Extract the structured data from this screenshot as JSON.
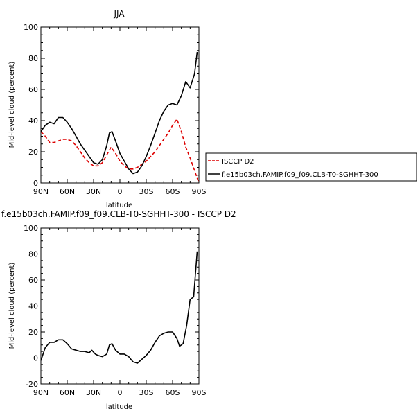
{
  "chart_data": [
    {
      "type": "line",
      "title": "JJA",
      "xlabel": "latitude",
      "ylabel": "Mid-level cloud (percent)",
      "xticks": [
        "90N",
        "60N",
        "30N",
        "0",
        "30S",
        "60S",
        "90S"
      ],
      "yticks": [
        "0",
        "20",
        "40",
        "60",
        "80",
        "100"
      ],
      "xlim": [
        90,
        -90
      ],
      "ylim": [
        0,
        100
      ],
      "series": [
        {
          "name": "ISCCP D2",
          "color": "#dd0000",
          "dash": true,
          "x": [
            90,
            85,
            80,
            75,
            70,
            65,
            60,
            55,
            50,
            45,
            40,
            35,
            30,
            25,
            20,
            15,
            10,
            5,
            0,
            -5,
            -10,
            -15,
            -20,
            -25,
            -30,
            -35,
            -40,
            -45,
            -50,
            -55,
            -60,
            -65,
            -70,
            -75,
            -80,
            -85,
            -90
          ],
          "y": [
            33,
            30,
            26,
            26,
            27,
            28,
            28,
            27,
            24,
            20,
            16,
            13,
            11,
            11,
            13,
            18,
            23,
            19,
            14,
            11,
            9,
            9,
            10,
            12,
            14,
            17,
            20,
            24,
            28,
            32,
            37,
            41,
            33,
            23,
            16,
            8,
            0
          ]
        },
        {
          "name": "f.e15b03ch.FAMIP.f09_f09.CLB-T0-SGHHT-300",
          "color": "#000000",
          "dash": false,
          "x": [
            90,
            85,
            80,
            75,
            70,
            65,
            60,
            55,
            50,
            45,
            40,
            35,
            30,
            25,
            20,
            15,
            12,
            9,
            5,
            0,
            -5,
            -10,
            -15,
            -20,
            -25,
            -30,
            -35,
            -40,
            -45,
            -50,
            -55,
            -60,
            -65,
            -70,
            -75,
            -80,
            -85,
            -88
          ],
          "y": [
            33,
            37,
            39,
            38,
            42,
            42,
            39,
            35,
            30,
            25,
            21,
            17,
            13,
            12,
            15,
            24,
            32,
            33,
            27,
            19,
            14,
            9,
            6,
            7,
            11,
            17,
            24,
            32,
            40,
            46,
            50,
            51,
            50,
            56,
            65,
            61,
            70,
            84
          ]
        }
      ]
    },
    {
      "type": "line",
      "title": "f.e15b03ch.FAMIP.f09_f09.CLB-T0-SGHHT-300 - ISCCP D2",
      "xlabel": "latitude",
      "ylabel": "Mid-level cloud (percent)",
      "xticks": [
        "90N",
        "60N",
        "30N",
        "0",
        "30S",
        "60S",
        "90S"
      ],
      "yticks": [
        "-20",
        "0",
        "20",
        "40",
        "60",
        "80",
        "100"
      ],
      "xlim": [
        90,
        -90
      ],
      "ylim": [
        -20,
        100
      ],
      "series": [
        {
          "color": "#000000",
          "dash": false,
          "x": [
            90,
            85,
            80,
            75,
            70,
            65,
            60,
            55,
            50,
            45,
            40,
            35,
            32,
            28,
            25,
            20,
            15,
            12,
            9,
            5,
            0,
            -5,
            -10,
            -15,
            -20,
            -25,
            -30,
            -35,
            -40,
            -45,
            -50,
            -55,
            -60,
            -65,
            -68,
            -72,
            -76,
            -80,
            -84,
            -88
          ],
          "y": [
            -2,
            8,
            12,
            12,
            14,
            14,
            11,
            7,
            6,
            5,
            5,
            4,
            6,
            3,
            2,
            1,
            3,
            10,
            11,
            6,
            3,
            3,
            1,
            -3,
            -4,
            -1,
            2,
            6,
            12,
            17,
            19,
            20,
            20,
            15,
            9,
            11,
            25,
            45,
            47,
            82
          ]
        }
      ]
    }
  ]
}
